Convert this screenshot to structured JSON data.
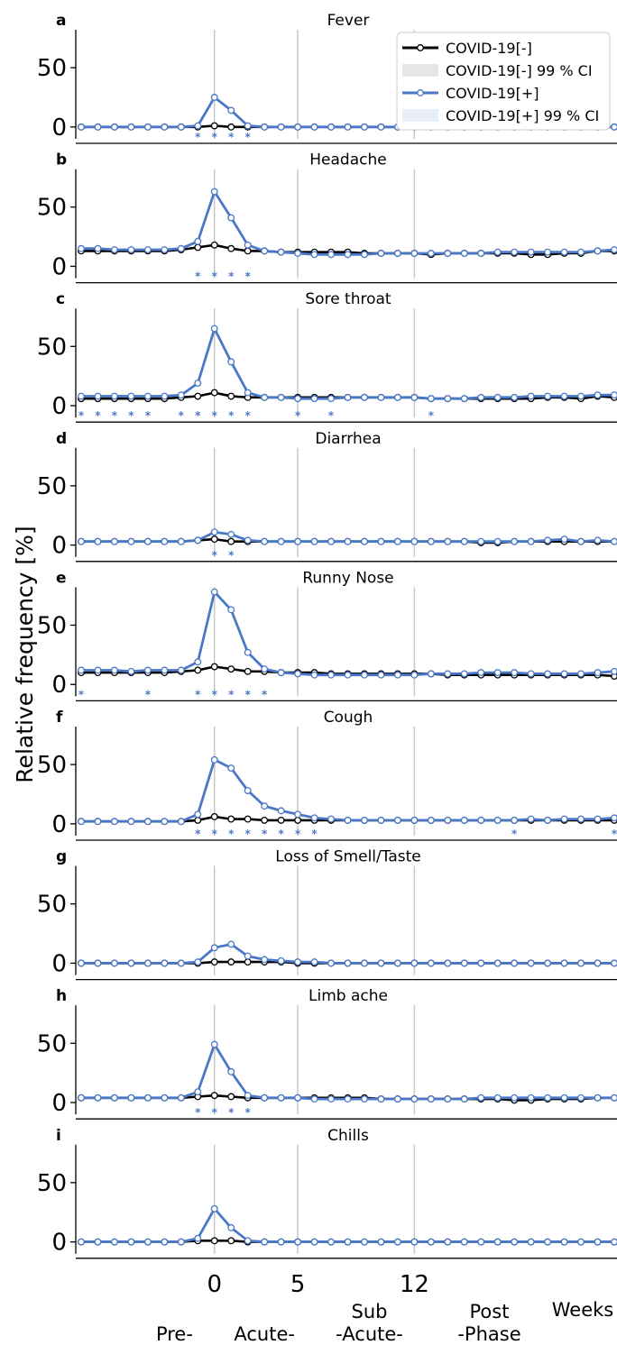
{
  "chart_data": {
    "type": "line",
    "ylabel": "Relative frequency [%]",
    "ylim": [
      -10,
      82
    ],
    "yticks": [
      0,
      50
    ],
    "xlim": [
      -8,
      24
    ],
    "xticks": [
      0,
      5,
      12
    ],
    "x": [
      -8,
      -7,
      -6,
      -5,
      -4,
      -3,
      -2,
      -1,
      0,
      1,
      2,
      3,
      4,
      5,
      6,
      7,
      8,
      9,
      10,
      11,
      12,
      13,
      14,
      15,
      16,
      17,
      18,
      19,
      20,
      21,
      22,
      23,
      24
    ],
    "vlines": [
      0,
      5,
      12
    ],
    "x_unit_label": "Weeks",
    "phase_labels": [
      {
        "text": "Pre-",
        "x": -2.4
      },
      {
        "text": "Acute-",
        "x": 3.0
      },
      {
        "text": "Sub\n-Acute-",
        "x": 9.3
      },
      {
        "text": "Post\n-Phase",
        "x": 16.5
      }
    ],
    "legend": {
      "placement": "top-right",
      "entries": [
        "COVID-19[-]",
        "COVID-19[-] 99 % CI",
        "COVID-19[+]",
        "COVID-19[+] 99 % CI"
      ]
    },
    "colors": {
      "neg": "#000000",
      "pos": "#4a78c6",
      "vline": "#c8c8c8",
      "ci_neg": "#e6e6e6",
      "ci_pos": "#e8eef8"
    },
    "series_names": [
      "COVID-19[-]",
      "COVID-19[+]"
    ],
    "panels": [
      {
        "letter": "a",
        "title": "Fever",
        "neg": [
          0,
          0,
          0,
          0,
          0,
          0,
          0,
          0,
          1,
          0,
          0,
          0,
          0,
          0,
          0,
          0,
          0,
          0,
          0,
          0,
          0,
          0,
          0,
          0,
          0,
          0,
          0,
          0,
          0,
          0,
          0,
          0,
          0
        ],
        "pos": [
          0,
          0,
          0,
          0,
          0,
          0,
          0,
          1,
          25,
          14,
          1,
          0,
          0,
          0,
          0,
          0,
          0,
          0,
          0,
          0,
          0,
          0,
          0,
          0,
          0,
          0,
          0,
          0,
          0,
          0,
          0,
          0,
          0
        ],
        "sig": [
          -1,
          0,
          1,
          2
        ]
      },
      {
        "letter": "b",
        "title": "Headache",
        "neg": [
          13,
          13,
          13,
          13,
          13,
          13,
          14,
          16,
          18,
          15,
          13,
          13,
          12,
          12,
          12,
          12,
          12,
          11,
          11,
          11,
          11,
          10,
          11,
          11,
          11,
          11,
          11,
          10,
          10,
          11,
          11,
          13,
          13
        ],
        "pos": [
          15,
          15,
          14,
          14,
          14,
          14,
          15,
          21,
          63,
          41,
          18,
          13,
          12,
          11,
          10,
          10,
          10,
          10,
          11,
          11,
          11,
          11,
          11,
          11,
          11,
          12,
          12,
          12,
          12,
          12,
          12,
          13,
          14
        ],
        "sig": [
          -1,
          0,
          1,
          2
        ]
      },
      {
        "letter": "c",
        "title": "Sore throat",
        "neg": [
          6,
          6,
          6,
          6,
          6,
          6,
          7,
          8,
          11,
          8,
          7,
          7,
          7,
          7,
          7,
          7,
          7,
          7,
          7,
          7,
          7,
          6,
          6,
          6,
          6,
          6,
          6,
          6,
          7,
          7,
          6,
          8,
          7
        ],
        "pos": [
          8,
          8,
          8,
          8,
          8,
          8,
          9,
          19,
          65,
          37,
          11,
          7,
          7,
          6,
          6,
          6,
          7,
          7,
          7,
          7,
          7,
          6,
          6,
          6,
          7,
          7,
          7,
          8,
          8,
          8,
          8,
          9,
          9
        ],
        "sig": [
          -8,
          -7,
          -6,
          -5,
          -4,
          -2,
          -1,
          0,
          1,
          2,
          5,
          7,
          13
        ]
      },
      {
        "letter": "d",
        "title": "Diarrhea",
        "neg": [
          3,
          3,
          3,
          3,
          3,
          3,
          3,
          4,
          5,
          3,
          3,
          3,
          3,
          3,
          3,
          3,
          3,
          3,
          3,
          3,
          3,
          3,
          3,
          3,
          2,
          2,
          3,
          3,
          3,
          3,
          3,
          3,
          3
        ],
        "pos": [
          3,
          3,
          3,
          3,
          3,
          3,
          3,
          4,
          11,
          9,
          4,
          3,
          3,
          3,
          3,
          3,
          3,
          3,
          3,
          3,
          3,
          3,
          3,
          3,
          3,
          3,
          3,
          3,
          4,
          5,
          3,
          4,
          3
        ],
        "sig": [
          0,
          1
        ]
      },
      {
        "letter": "e",
        "title": "Runny Nose",
        "neg": [
          10,
          10,
          10,
          10,
          10,
          10,
          11,
          12,
          15,
          13,
          11,
          11,
          10,
          10,
          10,
          9,
          9,
          9,
          9,
          9,
          9,
          9,
          8,
          8,
          8,
          8,
          8,
          8,
          8,
          8,
          8,
          8,
          7
        ],
        "pos": [
          12,
          12,
          12,
          11,
          12,
          12,
          12,
          19,
          78,
          63,
          27,
          13,
          10,
          9,
          8,
          8,
          8,
          8,
          8,
          8,
          8,
          9,
          9,
          9,
          10,
          10,
          10,
          9,
          9,
          9,
          9,
          10,
          11
        ],
        "sig": [
          -8,
          -4,
          -1,
          0,
          1,
          2,
          3
        ]
      },
      {
        "letter": "f",
        "title": "Cough",
        "neg": [
          2,
          2,
          2,
          2,
          2,
          2,
          2,
          3,
          6,
          4,
          4,
          3,
          3,
          3,
          3,
          3,
          3,
          3,
          3,
          3,
          3,
          3,
          3,
          3,
          3,
          3,
          3,
          3,
          3,
          3,
          3,
          3,
          3
        ],
        "pos": [
          2,
          2,
          2,
          2,
          2,
          2,
          2,
          8,
          54,
          47,
          28,
          15,
          11,
          8,
          5,
          4,
          3,
          3,
          3,
          3,
          3,
          3,
          3,
          3,
          3,
          3,
          3,
          4,
          3,
          4,
          4,
          4,
          5
        ],
        "sig": [
          -1,
          0,
          1,
          2,
          3,
          4,
          5,
          6,
          18,
          24
        ]
      },
      {
        "letter": "g",
        "title": "Loss of Smell/Taste",
        "neg": [
          0,
          0,
          0,
          0,
          0,
          0,
          0,
          0,
          1,
          1,
          1,
          1,
          1,
          0,
          0,
          0,
          0,
          0,
          0,
          0,
          0,
          0,
          0,
          0,
          0,
          0,
          0,
          0,
          0,
          0,
          0,
          0,
          0
        ],
        "pos": [
          0,
          0,
          0,
          0,
          0,
          0,
          0,
          1,
          13,
          16,
          6,
          3,
          2,
          1,
          1,
          0,
          0,
          0,
          0,
          0,
          0,
          0,
          0,
          0,
          0,
          0,
          0,
          0,
          0,
          0,
          0,
          0,
          0
        ],
        "sig": []
      },
      {
        "letter": "h",
        "title": "Limb ache",
        "neg": [
          4,
          4,
          4,
          4,
          4,
          4,
          4,
          5,
          6,
          5,
          4,
          4,
          4,
          4,
          4,
          4,
          4,
          4,
          3,
          3,
          3,
          3,
          3,
          3,
          3,
          3,
          2,
          2,
          3,
          3,
          3,
          4,
          4
        ],
        "pos": [
          4,
          4,
          4,
          4,
          4,
          4,
          4,
          9,
          49,
          26,
          6,
          4,
          4,
          4,
          3,
          3,
          3,
          3,
          3,
          3,
          3,
          3,
          3,
          3,
          4,
          4,
          4,
          4,
          4,
          4,
          4,
          4,
          4
        ],
        "sig": [
          -1,
          0,
          1,
          2
        ]
      },
      {
        "letter": "i",
        "title": "Chills",
        "neg": [
          0,
          0,
          0,
          0,
          0,
          0,
          0,
          1,
          1,
          1,
          0,
          0,
          0,
          0,
          0,
          0,
          0,
          0,
          0,
          0,
          0,
          0,
          0,
          0,
          0,
          0,
          0,
          0,
          0,
          0,
          0,
          0,
          0
        ],
        "pos": [
          0,
          0,
          0,
          0,
          0,
          0,
          0,
          3,
          28,
          12,
          1,
          0,
          0,
          0,
          0,
          0,
          0,
          0,
          0,
          0,
          0,
          0,
          0,
          0,
          0,
          0,
          0,
          0,
          0,
          0,
          0,
          0,
          0
        ],
        "sig": []
      }
    ]
  }
}
